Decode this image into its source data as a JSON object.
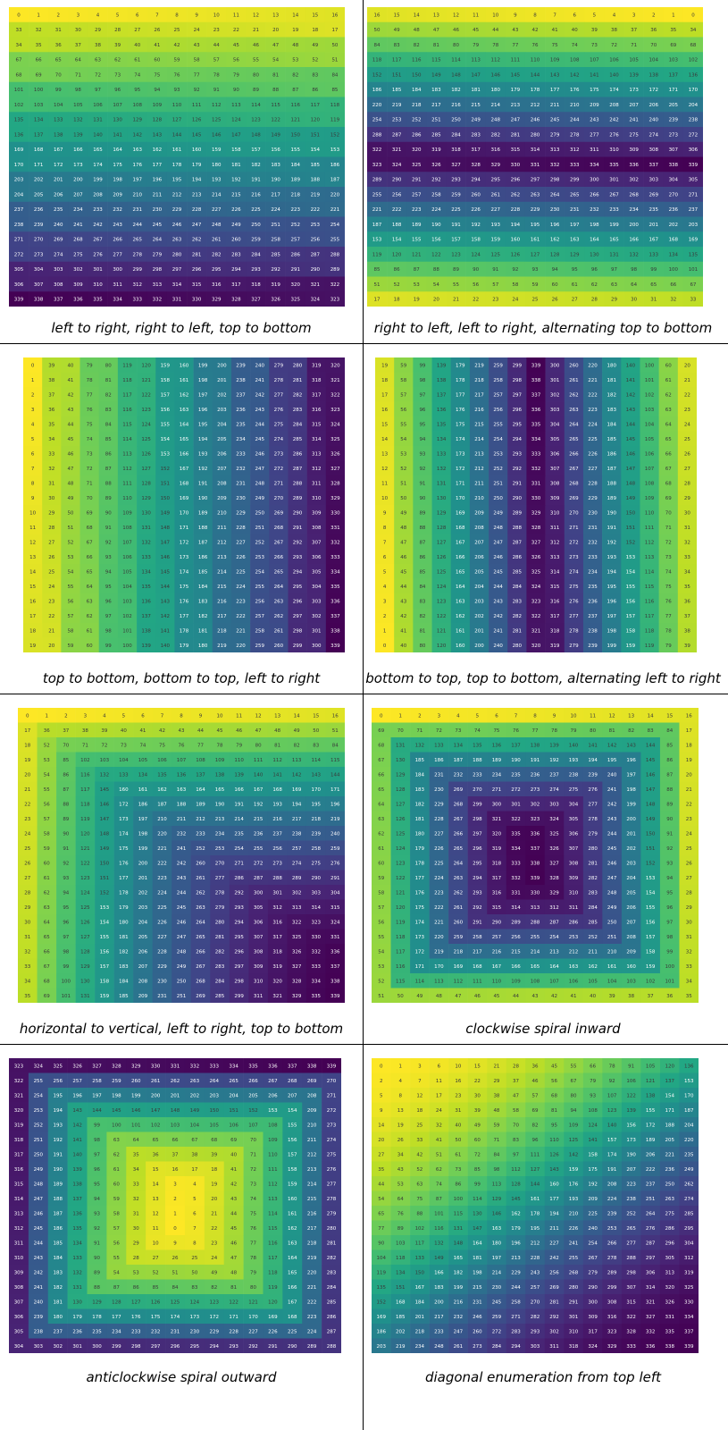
{
  "layout_note": "",
  "panels": [
    {
      "id": "p1",
      "caption": "left to right, right to left, top to bottom",
      "order": "boustro_rows"
    },
    {
      "id": "p2",
      "caption": "right to left, left to right, alternating top to bottom",
      "order": "boustro_rows_alt"
    },
    {
      "id": "p3",
      "caption": "top to bottom, bottom to top, left to right",
      "order": "col_major"
    },
    {
      "id": "p4",
      "caption": "bottom to top, top to bottom, alternating left to right",
      "order": "col_alt"
    },
    {
      "id": "p5",
      "caption": "horizontal to vertical, left to right, top to bottom",
      "order": "hv"
    },
    {
      "id": "p6",
      "caption": "clockwise spiral inward",
      "order": "spiral_in"
    },
    {
      "id": "p7",
      "caption": "anticlockwise spiral outward",
      "order": "spiral_out"
    },
    {
      "id": "p8",
      "caption": "diagonal enumeration from top left",
      "order": "diagonal"
    }
  ],
  "grid": {
    "rows": 20,
    "cols": 17,
    "max_value": 339
  },
  "colormap": "viridis_reversed"
}
